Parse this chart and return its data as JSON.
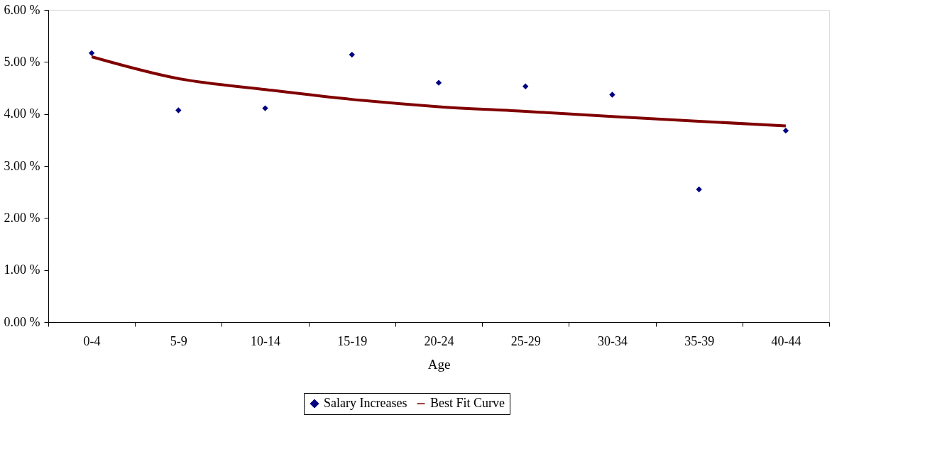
{
  "chart_data": {
    "type": "scatter",
    "xlabel": "Age",
    "categories": [
      "0-4",
      "5-9",
      "10-14",
      "15-19",
      "20-24",
      "25-29",
      "30-34",
      "35-39",
      "40-44"
    ],
    "series": [
      {
        "name": "Salary Increases",
        "color": "#000080",
        "values": [
          5.17,
          4.07,
          4.11,
          5.14,
          4.6,
          4.53,
          4.37,
          2.55,
          3.68
        ]
      },
      {
        "name": "Best Fit Curve",
        "type": "line",
        "color": "#800000",
        "marker": "none",
        "values": [
          5.1,
          4.68,
          4.47,
          4.28,
          4.14,
          4.05,
          3.95,
          3.86,
          3.77
        ]
      }
    ],
    "ylim": [
      0,
      6
    ],
    "yticks": [
      {
        "value": 0,
        "label": "0.00 %"
      },
      {
        "value": 1,
        "label": "1.00 %"
      },
      {
        "value": 2,
        "label": "2.00 %"
      },
      {
        "value": 3,
        "label": "3.00 %"
      },
      {
        "value": 4,
        "label": "4.00 %"
      },
      {
        "value": 5,
        "label": "5.00 %"
      },
      {
        "value": 6,
        "label": "6.00 %"
      }
    ],
    "grid": false,
    "legend": "bottom",
    "marker": "diamond",
    "line_style": "solid"
  }
}
